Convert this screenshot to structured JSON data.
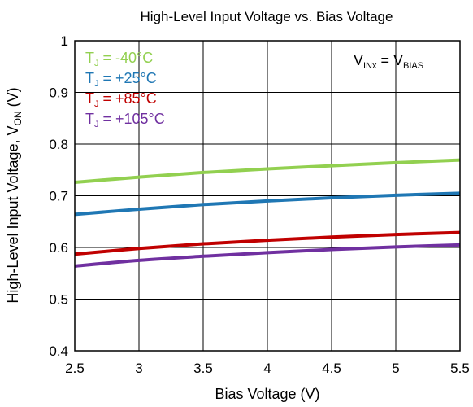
{
  "chart_data": {
    "type": "line",
    "title": "High-Level Input Voltage vs. Bias Voltage",
    "xlabel": "Bias Voltage (V)",
    "ylabel": {
      "main": "High-Level Input Voltage, V",
      "sub": "ON",
      "tail": " (V)"
    },
    "xlim": [
      2.5,
      5.5
    ],
    "ylim": [
      0.4,
      1.0
    ],
    "xticks": [
      2.5,
      3,
      3.5,
      4,
      4.5,
      5,
      5.5
    ],
    "xtick_labels": [
      "2.5",
      "3",
      "3.5",
      "4",
      "4.5",
      "5",
      "5.5"
    ],
    "yticks": [
      0.4,
      0.5,
      0.6,
      0.7,
      0.8,
      0.9,
      1.0
    ],
    "ytick_labels": [
      "0.4",
      "0.5",
      "0.6",
      "0.7",
      "0.8",
      "0.9",
      "1"
    ],
    "grid": true,
    "legend_position": "top-left",
    "annotation": {
      "main": "V",
      "sub": "INx",
      "mid": " = V",
      "sub2": "BIAS"
    },
    "x": [
      2.5,
      3.0,
      3.5,
      4.0,
      4.5,
      5.0,
      5.5
    ],
    "series": [
      {
        "name": "TJ = -40°C",
        "label_main": "T",
        "label_sub": "J",
        "label_tail": " = -40°C",
        "color": "#92d050",
        "values": [
          0.726,
          0.736,
          0.745,
          0.752,
          0.758,
          0.764,
          0.769
        ]
      },
      {
        "name": "TJ = +25°C",
        "label_main": "T",
        "label_sub": "J",
        "label_tail": " = +25°C",
        "color": "#1f77b4",
        "values": [
          0.664,
          0.674,
          0.683,
          0.69,
          0.696,
          0.701,
          0.705
        ]
      },
      {
        "name": "TJ = +85°C",
        "label_main": "T",
        "label_sub": "J",
        "label_tail": " = +85°C",
        "color": "#c00000",
        "values": [
          0.587,
          0.598,
          0.607,
          0.614,
          0.62,
          0.625,
          0.629
        ]
      },
      {
        "name": "TJ = +105°C",
        "label_main": "T",
        "label_sub": "J",
        "label_tail": " = +105°C",
        "color": "#7030a0",
        "values": [
          0.564,
          0.575,
          0.583,
          0.59,
          0.596,
          0.601,
          0.605
        ]
      }
    ]
  }
}
